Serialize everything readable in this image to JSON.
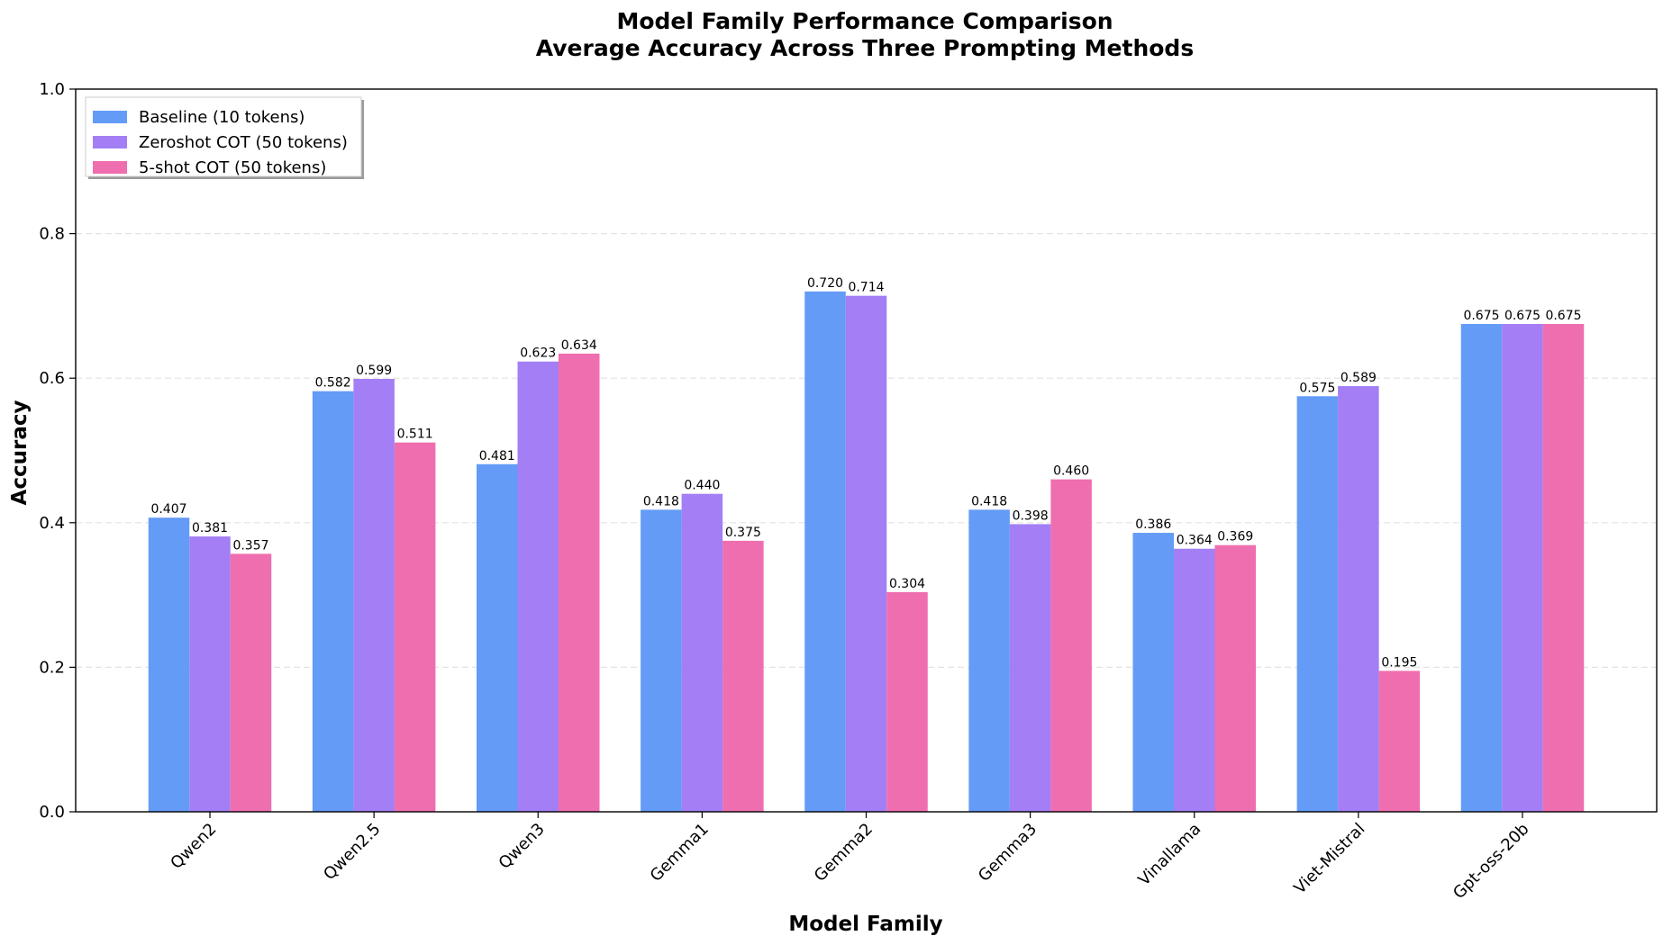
{
  "chart_data": {
    "type": "bar",
    "title": "Model Family Performance Comparison",
    "subtitle": "Average Accuracy Across Three Prompting Methods",
    "xlabel": "Model Family",
    "ylabel": "Accuracy",
    "ylim": [
      0,
      1.0
    ],
    "yticks": [
      "0.0",
      "0.2",
      "0.4",
      "0.6",
      "0.8",
      "1.0"
    ],
    "grid": "horizontal dashed",
    "legend_position": "top-left",
    "categories": [
      "Qwen2",
      "Qwen2.5",
      "Qwen3",
      "Gemma1",
      "Gemma2",
      "Gemma3",
      "Vinallama",
      "Viet-Mistral",
      "Gpt-oss-20b"
    ],
    "series": [
      {
        "name": "Baseline (10 tokens)",
        "color": "#639bf7",
        "values": [
          0.407,
          0.582,
          0.481,
          0.418,
          0.72,
          0.418,
          0.386,
          0.575,
          0.675
        ],
        "labels": [
          "0.407",
          "0.582",
          "0.481",
          "0.418",
          "0.720",
          "0.418",
          "0.386",
          "0.575",
          "0.675"
        ]
      },
      {
        "name": "Zeroshot COT (50 tokens)",
        "color": "#a37ef5",
        "values": [
          0.381,
          0.599,
          0.623,
          0.44,
          0.714,
          0.398,
          0.364,
          0.589,
          0.675
        ],
        "labels": [
          "0.381",
          "0.599",
          "0.623",
          "0.440",
          "0.714",
          "0.398",
          "0.364",
          "0.589",
          "0.675"
        ]
      },
      {
        "name": "5-shot COT (50 tokens)",
        "color": "#ef6eaf",
        "values": [
          0.357,
          0.511,
          0.634,
          0.375,
          0.304,
          0.46,
          0.369,
          0.195,
          0.675
        ],
        "labels": [
          "0.357",
          "0.511",
          "0.634",
          "0.375",
          "0.304",
          "0.460",
          "0.369",
          "0.195",
          "0.675"
        ]
      }
    ]
  }
}
